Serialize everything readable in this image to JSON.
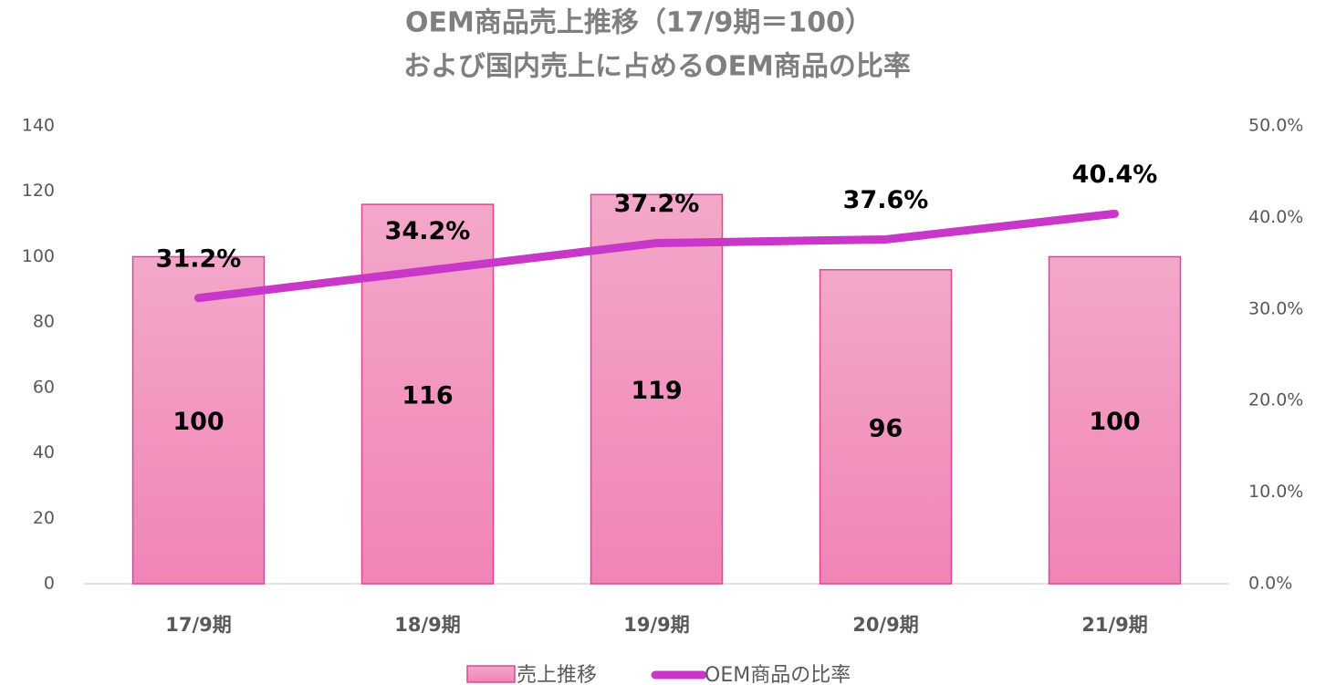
{
  "chart_data": {
    "type": "bar",
    "title": [
      "OEM商品売上推移（17/9期＝100）",
      "および国内売上に占めるOEM商品の比率"
    ],
    "categories": [
      "17/9期",
      "18/9期",
      "19/9期",
      "20/9期",
      "21/9期"
    ],
    "series": [
      {
        "name": "売上推移",
        "type": "bar",
        "color": "#f08cbb",
        "values": [
          100,
          116,
          119,
          96,
          100
        ]
      },
      {
        "name": "OEM商品の比率",
        "type": "line",
        "axis": "y2",
        "color": "#c837c8",
        "values": [
          31.2,
          34.2,
          37.2,
          37.6,
          40.4
        ],
        "value_labels": [
          "31.2%",
          "34.2%",
          "37.2%",
          "37.6%",
          "40.4%"
        ]
      }
    ],
    "ylim": [
      0,
      140
    ],
    "yticks": [
      0,
      20,
      40,
      60,
      80,
      100,
      120,
      140
    ],
    "y2lim": [
      0,
      50
    ],
    "y2ticks": [
      {
        "value": 0,
        "label": "0.0%"
      },
      {
        "value": 10,
        "label": "10.0%"
      },
      {
        "value": 20,
        "label": "20.0%"
      },
      {
        "value": 30,
        "label": "30.0%"
      },
      {
        "value": 40,
        "label": "40.0%"
      },
      {
        "value": 50,
        "label": "50.0%"
      }
    ],
    "grid": false
  }
}
